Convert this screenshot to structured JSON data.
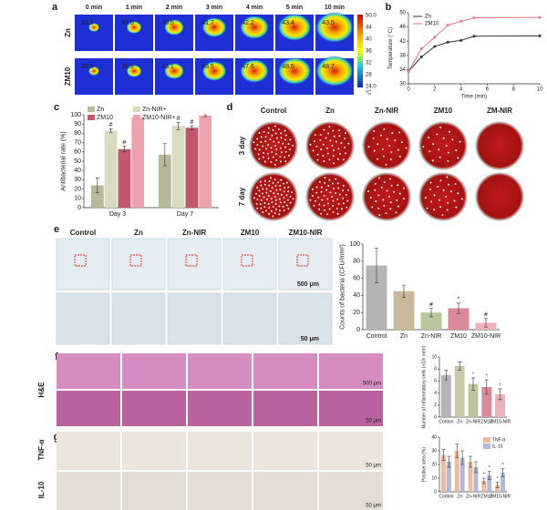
{
  "panel_labels": [
    "a",
    "b",
    "c",
    "d",
    "e",
    "f",
    "g"
  ],
  "thermal": {
    "times": [
      "0 min",
      "1 min",
      "2 min",
      "3 min",
      "4 min",
      "5 min",
      "10 min"
    ],
    "rows": [
      {
        "name": "Zn",
        "temps": [
          33.5,
          37.6,
          40.5,
          41.7,
          42.2,
          43.4,
          43.5
        ]
      },
      {
        "name": "ZM10",
        "temps": [
          33.5,
          39.9,
          43.1,
          46.5,
          47.6,
          48.6,
          48.7
        ]
      }
    ],
    "colorbar": [
      "50.0",
      "44",
      "40",
      "36",
      "32",
      "28",
      "24.0"
    ],
    "unit": "°C"
  },
  "plates": {
    "columns": [
      "Control",
      "Zn",
      "Zn-NIR",
      "ZM10",
      "ZM-NIR"
    ],
    "rows": [
      "3 day",
      "7 day"
    ]
  },
  "histology_e": {
    "columns": [
      "Control",
      "Zn",
      "Zn-NIR",
      "ZM10",
      "ZM10-NIR"
    ],
    "scale_bars": [
      "500 μm",
      "50 μm"
    ]
  },
  "histology_f": {
    "row": "H&E",
    "scale_bars": [
      "500 μm",
      "50 μm"
    ]
  },
  "histology_g": {
    "rows": [
      "TNF-α",
      "IL-10"
    ],
    "scale_bars": [
      "50 μm",
      "50 μm"
    ]
  },
  "chart_data": [
    {
      "type": "line",
      "xlabel": "Time (min)",
      "ylabel": "Temperature (°C)",
      "x": [
        0,
        1,
        2,
        3,
        4,
        5,
        10
      ],
      "xlim": [
        0,
        10
      ],
      "xticks": [
        0,
        2,
        4,
        6,
        8,
        10
      ],
      "ylim": [
        30,
        50
      ],
      "yticks": [
        30,
        34,
        38,
        42,
        46,
        50
      ],
      "legend": "upper left",
      "series": [
        {
          "name": "Zn",
          "color": "#333333",
          "values": [
            33.5,
            37.6,
            40.5,
            41.7,
            42.2,
            43.4,
            43.5
          ]
        },
        {
          "name": "ZM10",
          "color": "#e8788a",
          "values": [
            33.5,
            39.9,
            43.1,
            46.5,
            47.6,
            48.6,
            48.7
          ]
        }
      ]
    },
    {
      "type": "bar",
      "ylabel": "Antibacterial rate (%)",
      "categories": [
        "Day 3",
        "Day 7"
      ],
      "ylim": [
        0,
        100
      ],
      "yticks": [
        0,
        10,
        20,
        30,
        40,
        50,
        60,
        70,
        80,
        90,
        100
      ],
      "legend": "upper left",
      "series": [
        {
          "name": "Zn",
          "color": "#b7b99a",
          "values": [
            24,
            57
          ],
          "errors": [
            8,
            12
          ]
        },
        {
          "name": "Zn-NIR+",
          "color": "#d9dcc0",
          "values": [
            83,
            88
          ],
          "errors": [
            2,
            4
          ],
          "annotations": [
            "#",
            "#"
          ]
        },
        {
          "name": "ZM10",
          "color": "#c2586c",
          "values": [
            63,
            86
          ],
          "errors": [
            3,
            2
          ],
          "annotations": [
            "#",
            "#"
          ]
        },
        {
          "name": "ZM10-NIR+",
          "color": "#eea2ad",
          "values": [
            97,
            99
          ],
          "errors": [
            2,
            1
          ]
        }
      ]
    },
    {
      "type": "bar",
      "ylabel": "Counts of bacteria (CFU/mm²)",
      "categories": [
        "Control",
        "Zn",
        "Zn-NIR",
        "ZM10",
        "ZM10-NIR"
      ],
      "values": [
        75,
        45,
        20,
        25,
        8
      ],
      "errors": [
        20,
        7,
        5,
        6,
        5
      ],
      "annotations": [
        null,
        null,
        "#",
        "*",
        "#"
      ],
      "colors": [
        "#b4b4b4",
        "#c9b99a",
        "#b9c79a",
        "#d98a96",
        "#eeb0ba"
      ],
      "ylim": [
        0,
        100
      ],
      "yticks": [
        0,
        20,
        40,
        60,
        80,
        100
      ]
    },
    {
      "type": "bar",
      "ylabel": "Number of inflammatory cells (×10² mm²)",
      "categories": [
        "Control",
        "Zn",
        "Zn-NIR",
        "ZM10",
        "ZM10-NIR"
      ],
      "values": [
        7,
        8.5,
        5.5,
        5,
        3.8
      ],
      "errors": [
        0.8,
        0.7,
        1,
        1.2,
        0.9
      ],
      "annotations": [
        null,
        null,
        "*",
        "*",
        "*"
      ],
      "colors": [
        "#b4b4b4",
        "#c9c9a8",
        "#b9c79a",
        "#d98a96",
        "#eeb0ba"
      ],
      "ylim": [
        0,
        10
      ],
      "yticks": [
        0,
        2,
        4,
        6,
        8,
        10
      ]
    },
    {
      "type": "bar",
      "ylabel": "Positive area (%)",
      "categories": [
        "Control",
        "Zn",
        "Zn-NIR",
        "ZM10",
        "ZM10-NIR"
      ],
      "ylim": [
        0,
        40
      ],
      "yticks": [
        0,
        10,
        20,
        30,
        40
      ],
      "legend": "upper right",
      "series": [
        {
          "name": "TNF-α",
          "color": "#f0bb9c",
          "values": [
            27,
            30,
            22,
            8,
            5
          ],
          "errors": [
            4,
            5,
            4,
            2,
            2
          ],
          "annotations": [
            null,
            null,
            null,
            "*",
            "*"
          ]
        },
        {
          "name": "IL-10",
          "color": "#aebbda",
          "values": [
            22,
            25,
            18,
            12,
            14
          ],
          "errors": [
            4,
            5,
            4,
            3,
            3
          ],
          "annotations": [
            null,
            null,
            null,
            "*",
            "*"
          ]
        }
      ]
    }
  ]
}
